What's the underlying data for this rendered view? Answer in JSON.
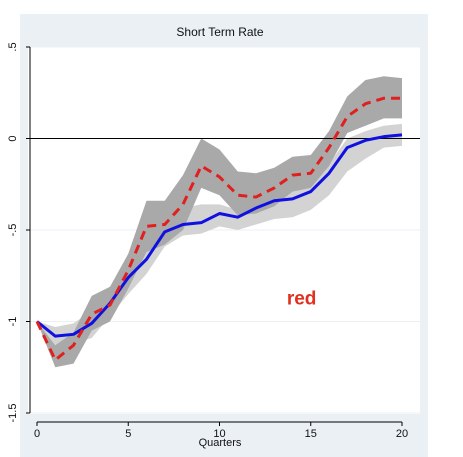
{
  "chart_data": {
    "type": "line",
    "title": "Short Term Rate",
    "xlabel": "Quarters",
    "ylabel": "",
    "xlim": [
      0,
      20
    ],
    "ylim": [
      -1.5,
      0.5
    ],
    "x_ticks": [
      0,
      5,
      10,
      15,
      20
    ],
    "y_ticks": [
      -1.5,
      -1,
      -0.5,
      0,
      0.5
    ],
    "x_tick_labels": [
      "0",
      "5",
      "10",
      "15",
      "20"
    ],
    "y_tick_labels": [
      "-1.5",
      "-1",
      "-.5",
      "0",
      ".5"
    ],
    "grid": "horizontal",
    "reference_line_y": 0,
    "annotation": {
      "text": "red",
      "x": 14.5,
      "y": -0.87
    },
    "x": [
      0,
      1,
      2,
      3,
      4,
      5,
      6,
      7,
      8,
      9,
      10,
      11,
      12,
      13,
      14,
      15,
      16,
      17,
      18,
      19,
      20
    ],
    "series": [
      {
        "values": [
          -1.0,
          -1.08,
          -1.07,
          -1.01,
          -0.9,
          -0.76,
          -0.66,
          -0.51,
          -0.47,
          -0.46,
          -0.41,
          -0.43,
          -0.38,
          -0.34,
          -0.33,
          -0.29,
          -0.19,
          -0.05,
          -0.01,
          0.01,
          0.02
        ],
        "color": "#1010e0",
        "style": "solid"
      },
      {
        "values": [
          -1.0,
          -1.21,
          -1.13,
          -0.96,
          -0.91,
          -0.72,
          -0.48,
          -0.47,
          -0.36,
          -0.15,
          -0.21,
          -0.31,
          -0.32,
          -0.27,
          -0.2,
          -0.19,
          -0.05,
          0.12,
          0.19,
          0.22,
          0.22
        ],
        "color": "#e0201e",
        "style": "dashed"
      }
    ],
    "bands": [
      {
        "color": "#d3d3d3",
        "upper": [
          -1.0,
          -1.03,
          -1.01,
          -0.94,
          -0.85,
          -0.71,
          -0.57,
          -0.43,
          -0.38,
          -0.36,
          -0.36,
          -0.39,
          -0.33,
          -0.28,
          -0.26,
          -0.22,
          -0.14,
          0.0,
          0.04,
          0.07,
          0.08
        ],
        "lower": [
          -1.0,
          -1.13,
          -1.12,
          -1.09,
          -0.97,
          -0.85,
          -0.74,
          -0.59,
          -0.53,
          -0.52,
          -0.48,
          -0.5,
          -0.47,
          -0.44,
          -0.43,
          -0.39,
          -0.31,
          -0.18,
          -0.11,
          -0.05,
          -0.04
        ]
      },
      {
        "color": "#a9a9a9",
        "upper": [
          -1.0,
          -1.13,
          -1.06,
          -0.86,
          -0.81,
          -0.63,
          -0.34,
          -0.34,
          -0.2,
          0.0,
          -0.06,
          -0.18,
          -0.19,
          -0.16,
          -0.1,
          -0.09,
          0.04,
          0.23,
          0.32,
          0.34,
          0.33
        ],
        "lower": [
          -1.0,
          -1.25,
          -1.23,
          -1.05,
          -1.0,
          -0.82,
          -0.62,
          -0.58,
          -0.5,
          -0.27,
          -0.31,
          -0.42,
          -0.41,
          -0.37,
          -0.29,
          -0.27,
          -0.15,
          0.03,
          0.07,
          0.11,
          0.11
        ]
      }
    ]
  }
}
